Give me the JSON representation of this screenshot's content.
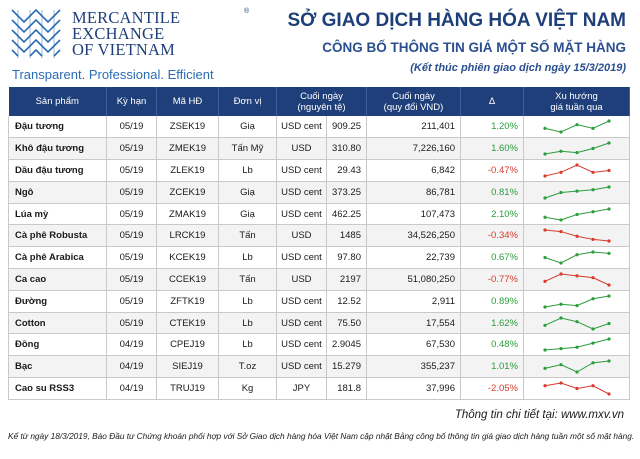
{
  "brand": {
    "line1": "MERCANTILE",
    "line2": "EXCHANGE",
    "line3": "OF VIETNAM",
    "registered": "®",
    "tagline": "Transparent. Professional. Efficient"
  },
  "header": {
    "title": "SỞ GIAO DỊCH HÀNG HÓA VIỆT NAM",
    "subtitle": "CÔNG BỐ THÔNG TIN GIÁ MỘT SỐ MẶT HÀNG",
    "note": "(Kết thúc phiên giao dịch ngày 15/3/2019)"
  },
  "table": {
    "headers": {
      "product": "Sản phẩm",
      "term": "Kỳ hạn",
      "code": "Mã HĐ",
      "unit": "Đơn vị",
      "close_native_l1": "Cuối ngày",
      "close_native_l2": "(nguyên tệ)",
      "close_vnd_l1": "Cuối ngày",
      "close_vnd_l2": "(quy đổi VND)",
      "delta": "Δ",
      "trend_l1": "Xu hướng",
      "trend_l2": "giá tuần qua"
    },
    "rows": [
      {
        "product": "Đậu tương",
        "term": "05/19",
        "code": "ZSEK19",
        "unit": "Giạ",
        "currency": "USD cent",
        "price": "909.25",
        "price_vnd": "211,401",
        "change": "1.20%",
        "dir": "up",
        "trend": [
          3,
          2,
          4,
          3,
          5
        ]
      },
      {
        "product": "Khô đậu tương",
        "term": "05/19",
        "code": "ZMEK19",
        "unit": "Tấn Mỹ",
        "currency": "USD",
        "price": "310.80",
        "price_vnd": "7,226,160",
        "change": "1.60%",
        "dir": "up",
        "trend": [
          1,
          2,
          1.5,
          3,
          5
        ]
      },
      {
        "product": "Dầu đậu tương",
        "term": "05/19",
        "code": "ZLEK19",
        "unit": "Lb",
        "currency": "USD cent",
        "price": "29.43",
        "price_vnd": "6,842",
        "change": "-0.47%",
        "dir": "down",
        "trend": [
          2,
          3,
          5,
          3,
          3.5
        ]
      },
      {
        "product": "Ngô",
        "term": "05/19",
        "code": "ZCEK19",
        "unit": "Giạ",
        "currency": "USD cent",
        "price": "373.25",
        "price_vnd": "86,781",
        "change": "0.81%",
        "dir": "up",
        "trend": [
          1,
          3,
          3.5,
          4,
          5
        ]
      },
      {
        "product": "Lúa mỳ",
        "term": "05/19",
        "code": "ZMAK19",
        "unit": "Giạ",
        "currency": "USD cent",
        "price": "462.25",
        "price_vnd": "107,473",
        "change": "2.10%",
        "dir": "up",
        "trend": [
          2,
          1,
          3,
          4,
          5
        ]
      },
      {
        "product": "Cà phê Robusta",
        "term": "05/19",
        "code": "LRCK19",
        "unit": "Tấn",
        "currency": "USD",
        "price": "1485",
        "price_vnd": "34,526,250",
        "change": "-0.34%",
        "dir": "down",
        "trend": [
          5,
          4.5,
          3,
          2,
          1.5
        ]
      },
      {
        "product": "Cà phê Arabica",
        "term": "05/19",
        "code": "KCEK19",
        "unit": "Lb",
        "currency": "USD cent",
        "price": "97.80",
        "price_vnd": "22,739",
        "change": "0.67%",
        "dir": "up",
        "trend": [
          3,
          1,
          4,
          5,
          4.5
        ]
      },
      {
        "product": "Ca cao",
        "term": "05/19",
        "code": "CCEK19",
        "unit": "Tấn",
        "currency": "USD",
        "price": "2197",
        "price_vnd": "51,080,250",
        "change": "-0.77%",
        "dir": "down",
        "trend": [
          3,
          5,
          4.5,
          4,
          2
        ]
      },
      {
        "product": "Đường",
        "term": "05/19",
        "code": "ZFTK19",
        "unit": "Lb",
        "currency": "USD cent",
        "price": "12.52",
        "price_vnd": "2,911",
        "change": "0.89%",
        "dir": "up",
        "trend": [
          1,
          2,
          1.5,
          4,
          5
        ]
      },
      {
        "product": "Cotton",
        "term": "05/19",
        "code": "CTEK19",
        "unit": "Lb",
        "currency": "USD cent",
        "price": "75.50",
        "price_vnd": "17,554",
        "change": "1.62%",
        "dir": "up",
        "trend": [
          3,
          5,
          4,
          2,
          3.5
        ]
      },
      {
        "product": "Đồng",
        "term": "04/19",
        "code": "CPEJ19",
        "unit": "Lb",
        "currency": "USD cent",
        "price": "2.9045",
        "price_vnd": "67,530",
        "change": "0.48%",
        "dir": "up",
        "trend": [
          1,
          1.5,
          2,
          3.5,
          5
        ]
      },
      {
        "product": "Bạc",
        "term": "04/19",
        "code": "SIEJ19",
        "unit": "T.oz",
        "currency": "USD cent",
        "price": "15.279",
        "price_vnd": "355,237",
        "change": "1.01%",
        "dir": "up",
        "trend": [
          3,
          4,
          2,
          4.5,
          5
        ]
      },
      {
        "product": "Cao su RSS3",
        "term": "04/19",
        "code": "TRUJ19",
        "unit": "Kg",
        "currency": "JPY",
        "price": "181.8",
        "price_vnd": "37,996",
        "change": "-2.05%",
        "dir": "down",
        "trend": [
          4,
          5,
          3,
          4,
          1
        ]
      }
    ]
  },
  "colors": {
    "navy": "#1f3f7a",
    "up": "#2a9d3c",
    "down": "#d83a2c"
  },
  "footer": {
    "link_text": "Thông tin chi tiết tại: www.mxv.vn",
    "footnote": "Kể từ ngày 18/3/2019, Báo Đầu tư Chứng khoán phối hợp với Sở Giao dịch hàng hóa Việt Nam cập nhật Bảng công bố thông tin giá giao dịch hàng tuần một số mặt hàng."
  }
}
